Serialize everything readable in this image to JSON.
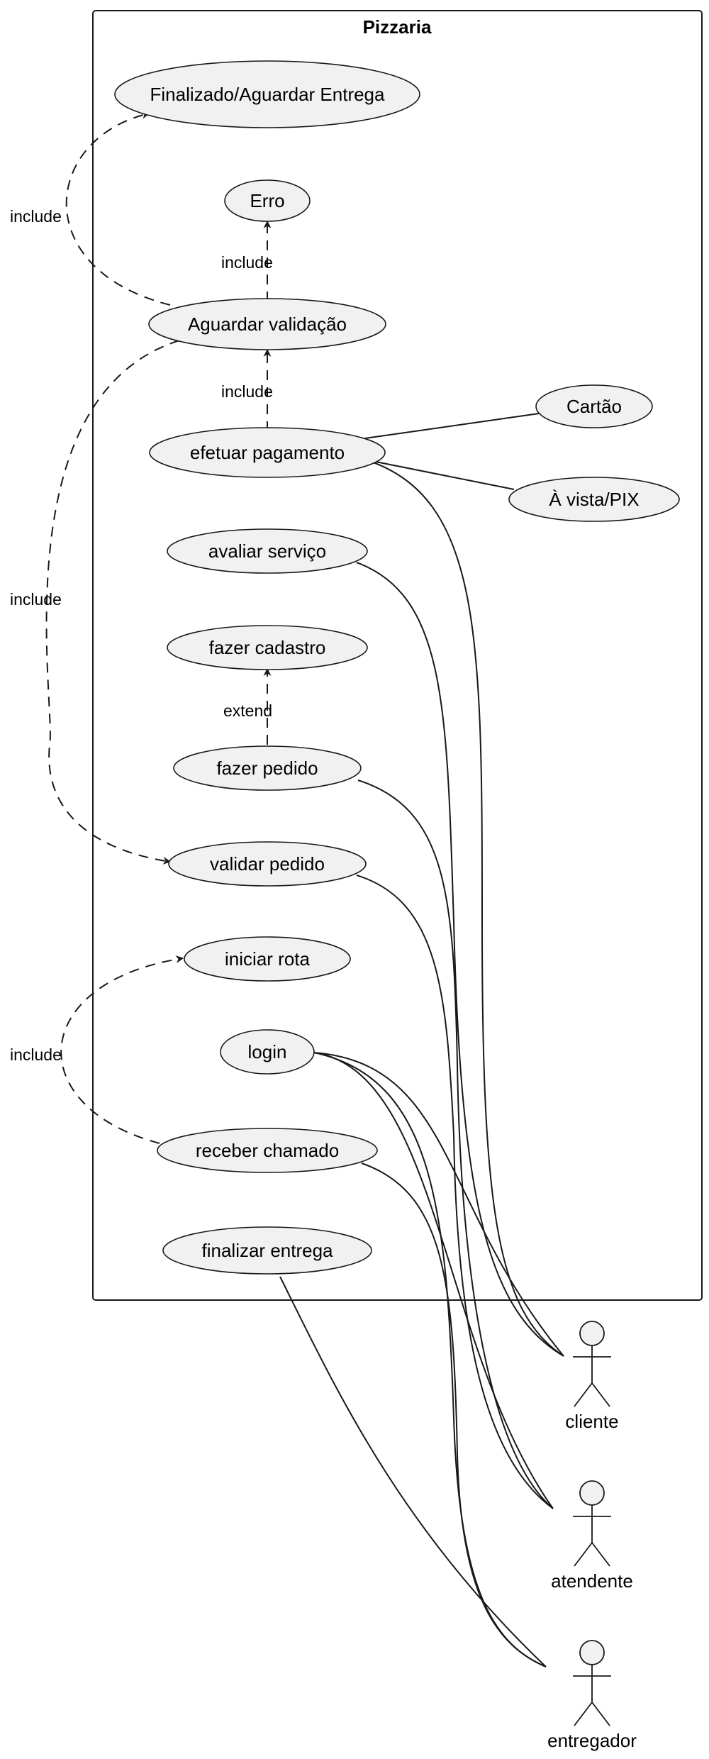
{
  "system": {
    "title": "Pizzaria"
  },
  "use_cases": {
    "finalizado": "Finalizado/Aguardar Entrega",
    "erro": "Erro",
    "aguardar": "Aguardar validação",
    "cartao": "Cartão",
    "pagamento": "efetuar pagamento",
    "avista": "À vista/PIX",
    "avaliar": "avaliar serviço",
    "cadastro": "fazer cadastro",
    "pedido": "fazer pedido",
    "validar": "validar pedido",
    "rota": "iniciar rota",
    "login": "login",
    "chamado": "receber chamado",
    "finalizar": "finalizar entrega"
  },
  "actors": {
    "cliente": "cliente",
    "atendente": "atendente",
    "entregador": "entregador"
  },
  "relations": {
    "include_finalizado": "include",
    "include_erro": "include",
    "include_aguardar": "include",
    "include_validar": "include",
    "extend_cadastro": "extend",
    "include_rota": "include"
  }
}
